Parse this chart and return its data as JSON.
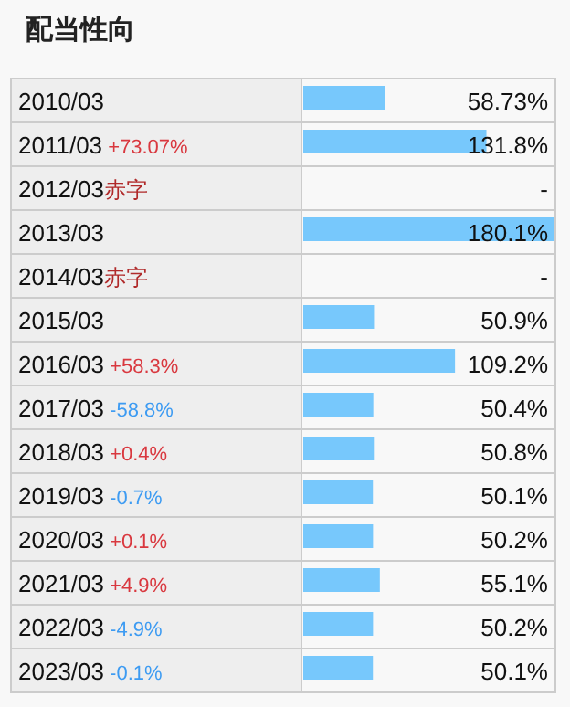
{
  "chart_data": {
    "type": "bar",
    "orientation": "horizontal",
    "title": "配当性向",
    "categories": [
      "2010/03",
      "2011/03 +73.07%",
      "2012/03赤字",
      "2013/03",
      "2014/03赤字",
      "2015/03",
      "2016/03 +58.3%",
      "2017/03 -58.8%",
      "2018/03 +0.4%",
      "2019/03 -0.7%",
      "2020/03 +0.1%",
      "2021/03 +4.9%",
      "2022/03 -4.9%",
      "2023/03 -0.1%"
    ],
    "values": [
      58.73,
      131.8,
      null,
      180.1,
      null,
      50.9,
      109.2,
      50.4,
      50.8,
      50.1,
      50.2,
      55.1,
      50.2,
      50.1
    ],
    "value_labels": [
      "58.73%",
      "131.8%",
      "-",
      "180.1%",
      "-",
      "50.9%",
      "109.2%",
      "50.4%",
      "50.8%",
      "50.1%",
      "50.2%",
      "55.1%",
      "50.2%",
      "50.1%"
    ],
    "color": "#77c8fc"
  }
}
